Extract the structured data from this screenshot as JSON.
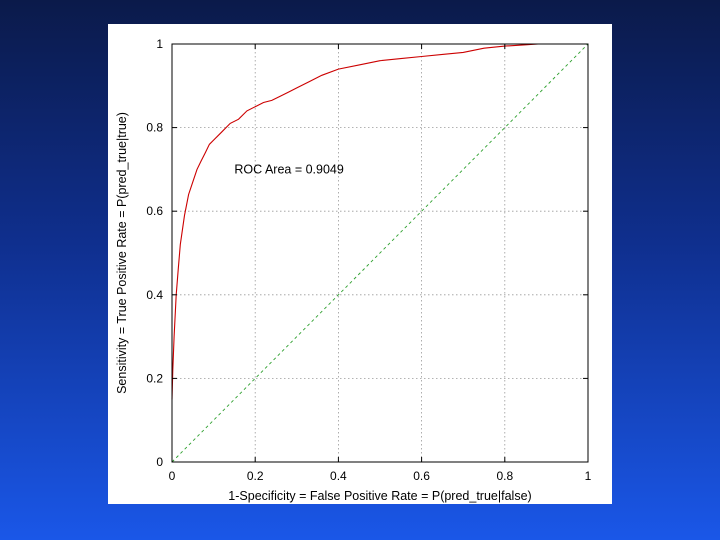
{
  "chart_data": {
    "type": "line",
    "title": "",
    "xlabel": "1-Specificity = False Positive Rate = P(pred_true|false)",
    "ylabel": "Sensitivity = True Positive Rate = P(pred_true|true)",
    "xlim": [
      0,
      1
    ],
    "ylim": [
      0,
      1
    ],
    "xticks": [
      "0",
      "0.2",
      "0.4",
      "0.6",
      "0.8",
      "1"
    ],
    "yticks": [
      "0",
      "0.2",
      "0.4",
      "0.6",
      "0.8",
      "1"
    ],
    "grid": true,
    "annotation": "ROC Area = 0.9049",
    "series": [
      {
        "color": "#cc0000",
        "x": [
          0,
          0.002,
          0.005,
          0.01,
          0.015,
          0.02,
          0.03,
          0.04,
          0.05,
          0.06,
          0.07,
          0.08,
          0.09,
          0.1,
          0.12,
          0.14,
          0.16,
          0.18,
          0.2,
          0.22,
          0.24,
          0.26,
          0.28,
          0.3,
          0.33,
          0.36,
          0.4,
          0.45,
          0.5,
          0.55,
          0.6,
          0.65,
          0.7,
          0.75,
          0.8,
          0.85,
          0.88,
          0.9,
          1.0
        ],
        "y": [
          0.15,
          0.22,
          0.3,
          0.4,
          0.46,
          0.52,
          0.59,
          0.64,
          0.67,
          0.7,
          0.72,
          0.74,
          0.76,
          0.77,
          0.79,
          0.81,
          0.82,
          0.84,
          0.85,
          0.86,
          0.865,
          0.875,
          0.885,
          0.895,
          0.91,
          0.925,
          0.94,
          0.95,
          0.96,
          0.965,
          0.97,
          0.975,
          0.98,
          0.99,
          0.995,
          0.998,
          1.0,
          1.0,
          1.0
        ]
      },
      {
        "color": "#2ea02e",
        "style": "dashed",
        "x": [
          0,
          1
        ],
        "y": [
          0,
          1
        ]
      }
    ]
  }
}
